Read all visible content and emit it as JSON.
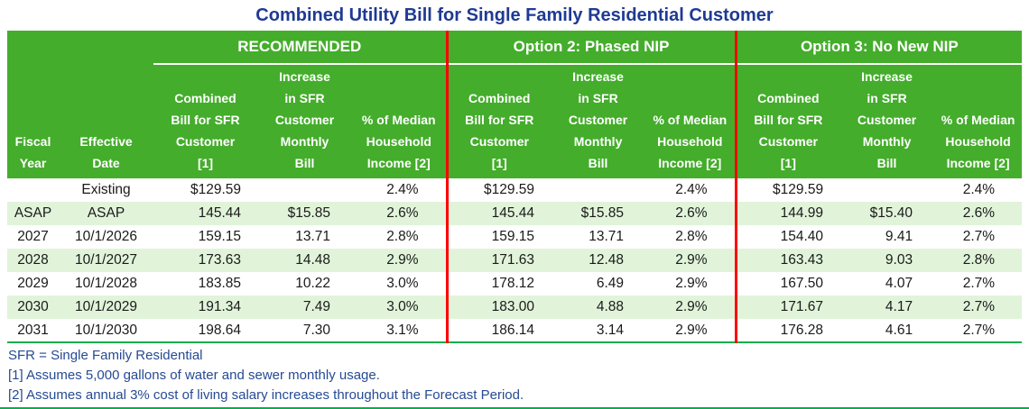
{
  "title": "Combined Utility Bill for Single Family Residential Customer",
  "colors": {
    "header_green": "#44AD2B",
    "stripe_green": "#E1F4DA",
    "divider_red": "#FF0000",
    "rule_green": "#00B050",
    "title_blue": "#1F3A93",
    "note_blue": "#264A94"
  },
  "table": {
    "groups": [
      "RECOMMENDED",
      "Option 2: Phased NIP",
      "Option 3: No New NIP"
    ],
    "col_labels": [
      "Fiscal\nYear",
      "Effective\nDate",
      "Combined\nBill for SFR\nCustomer\n[1]",
      "Increase\nin SFR\nCustomer\nMonthly\nBill",
      "% of Median\nHousehold\nIncome [2]"
    ]
  },
  "footnotes": [
    "SFR = Single Family Residential",
    "[1] Assumes 5,000 gallons of water and sewer monthly usage.",
    "[2] Assumes annual 3% cost of living salary increases throughout the Forecast Period."
  ],
  "chart_data": {
    "type": "table",
    "title": "Combined Utility Bill for Single Family Residential Customer",
    "column_groups": [
      {
        "label": "RECOMMENDED",
        "columns": [
          "Combined Bill for SFR Customer [1]",
          "Increase in SFR Customer Monthly Bill",
          "% of Median Household Income [2]"
        ]
      },
      {
        "label": "Option 2: Phased NIP",
        "columns": [
          "Combined Bill for SFR Customer [1]",
          "Increase in SFR Customer Monthly Bill",
          "% of Median Household Income [2]"
        ]
      },
      {
        "label": "Option 3: No New NIP",
        "columns": [
          "Combined Bill for SFR Customer [1]",
          "Increase in SFR Customer Monthly Bill",
          "% of Median Household Income [2]"
        ]
      }
    ],
    "row_columns": [
      "Fiscal Year",
      "Effective Date"
    ],
    "rows": [
      [
        "",
        "Existing",
        "$129.59",
        "",
        "2.4%",
        "$129.59",
        "",
        "2.4%",
        "$129.59",
        "",
        "2.4%"
      ],
      [
        "ASAP",
        "ASAP",
        "145.44",
        "$15.85",
        "2.6%",
        "145.44",
        "$15.85",
        "2.6%",
        "144.99",
        "$15.40",
        "2.6%"
      ],
      [
        "2027",
        "10/1/2026",
        "159.15",
        "13.71",
        "2.8%",
        "159.15",
        "13.71",
        "2.8%",
        "154.40",
        "9.41",
        "2.7%"
      ],
      [
        "2028",
        "10/1/2027",
        "173.63",
        "14.48",
        "2.9%",
        "171.63",
        "12.48",
        "2.9%",
        "163.43",
        "9.03",
        "2.8%"
      ],
      [
        "2029",
        "10/1/2028",
        "183.85",
        "10.22",
        "3.0%",
        "178.12",
        "6.49",
        "2.9%",
        "167.50",
        "4.07",
        "2.7%"
      ],
      [
        "2030",
        "10/1/2029",
        "191.34",
        "7.49",
        "3.0%",
        "183.00",
        "4.88",
        "2.9%",
        "171.67",
        "4.17",
        "2.7%"
      ],
      [
        "2031",
        "10/1/2030",
        "198.64",
        "7.30",
        "3.1%",
        "186.14",
        "3.14",
        "2.9%",
        "176.28",
        "4.61",
        "2.7%"
      ]
    ]
  }
}
